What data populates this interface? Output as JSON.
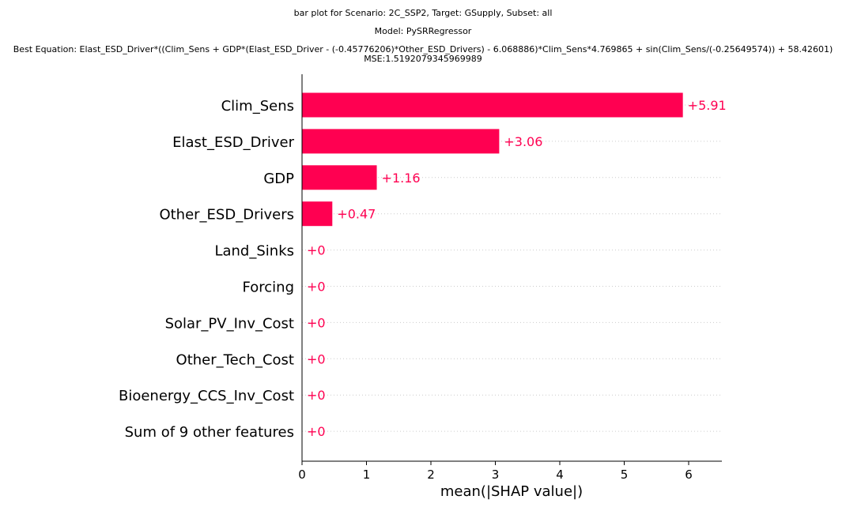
{
  "figure": {
    "title_line1": "bar plot for Scenario: 2C_SSP2, Target: GSupply, Subset: all",
    "title_line2": "Model: PySRRegressor",
    "title_line3": "Best Equation: Elast_ESD_Driver*((Clim_Sens + GDP*(Elast_ESD_Driver - (-0.45776206)*Other_ESD_Drivers) - 6.068886)*Clim_Sens*4.769865 + sin(Clim_Sens/(-0.25649574)) + 58.42601)",
    "title_line4": "MSE:1.5192079345969989"
  },
  "chart_data": {
    "type": "bar",
    "orientation": "horizontal",
    "categories": [
      "Clim_Sens",
      "Elast_ESD_Driver",
      "GDP",
      "Other_ESD_Drivers",
      "Land_Sinks",
      "Forcing",
      "Solar_PV_Inv_Cost",
      "Other_Tech_Cost",
      "Bioenergy_CCS_Inv_Cost",
      "Sum of 9 other features"
    ],
    "values": [
      5.91,
      3.06,
      1.16,
      0.47,
      0,
      0,
      0,
      0,
      0,
      0
    ],
    "value_labels": [
      "+5.91",
      "+3.06",
      "+1.16",
      "+0.47",
      "+0",
      "+0",
      "+0",
      "+0",
      "+0",
      "+0"
    ],
    "xlabel": "mean(|SHAP value|)",
    "ylabel": "",
    "xlim": [
      0,
      6.5
    ],
    "xticks": [
      "0",
      "1",
      "2",
      "3",
      "4",
      "5",
      "6"
    ],
    "bar_color": "#ff0051",
    "grid": "dotted row guides"
  }
}
